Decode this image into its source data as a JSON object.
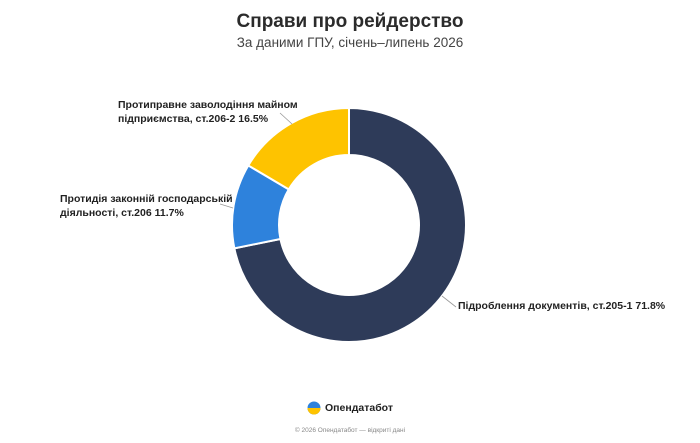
{
  "header": {
    "title": "Справи про рейдерство",
    "subtitle": "За даними ГПУ, січень–липень 2026"
  },
  "chart_data": {
    "type": "pie",
    "donut": true,
    "categories": [
      "Підроблення документів, ст.205-1",
      "Протидія законній господарській діяльності, ст.206",
      "Протиправне заволодіння майном підприємства, ст.206-2"
    ],
    "values": [
      71.8,
      11.7,
      16.5
    ],
    "colors": [
      "#2e3b59",
      "#2e82dc",
      "#fec300"
    ],
    "labels": [
      "Підроблення документів, ст.205-1 71.8%",
      "Протидія законній господарській\nдіяльності, ст.206 11.7%",
      "Протиправне заволодіння майном\nпідприємства, ст.206-2 16.5%"
    ],
    "legend": "none"
  },
  "branding": {
    "logo_text": "Опендатабот",
    "footer": "© 2026 Опендатабот — відкриті дані",
    "logo_colors": [
      "#2e82dc",
      "#fec300"
    ]
  }
}
